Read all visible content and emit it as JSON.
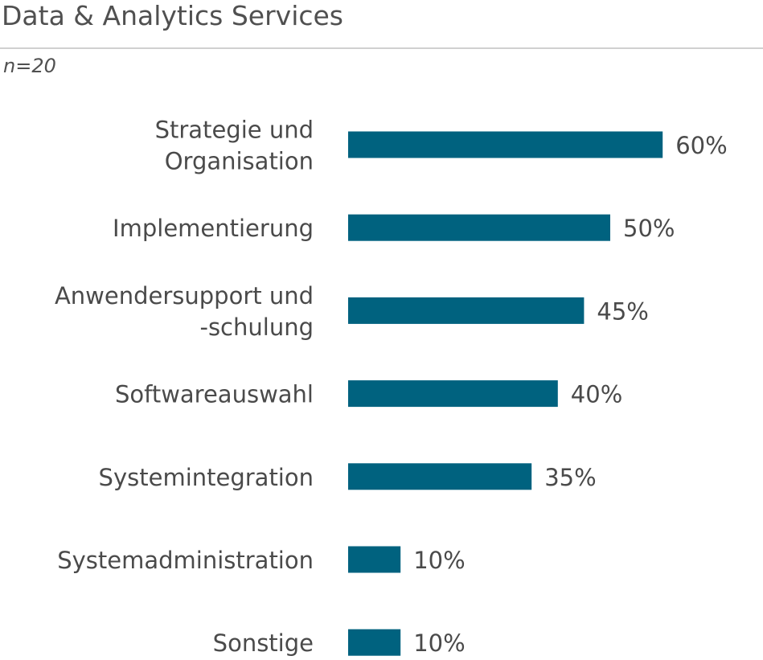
{
  "chart_data": {
    "type": "bar",
    "orientation": "horizontal",
    "title": "Data & Analytics Services",
    "subtitle": "n=20",
    "categories": [
      [
        "Strategie und",
        "Organisation"
      ],
      [
        "Implementierung"
      ],
      [
        "Anwendersupport und",
        "-schulung"
      ],
      [
        "Softwareauswahl"
      ],
      [
        "Systemintegration"
      ],
      [
        "Systemadministration"
      ],
      [
        "Sonstige"
      ]
    ],
    "values": [
      60,
      50,
      45,
      40,
      35,
      10,
      10
    ],
    "value_labels": [
      "60%",
      "50%",
      "45%",
      "40%",
      "35%",
      "10%",
      "10%"
    ],
    "unit": "%",
    "xlim": [
      0,
      100
    ],
    "grid": false,
    "legend": "none",
    "bar_color": "#00627F"
  }
}
